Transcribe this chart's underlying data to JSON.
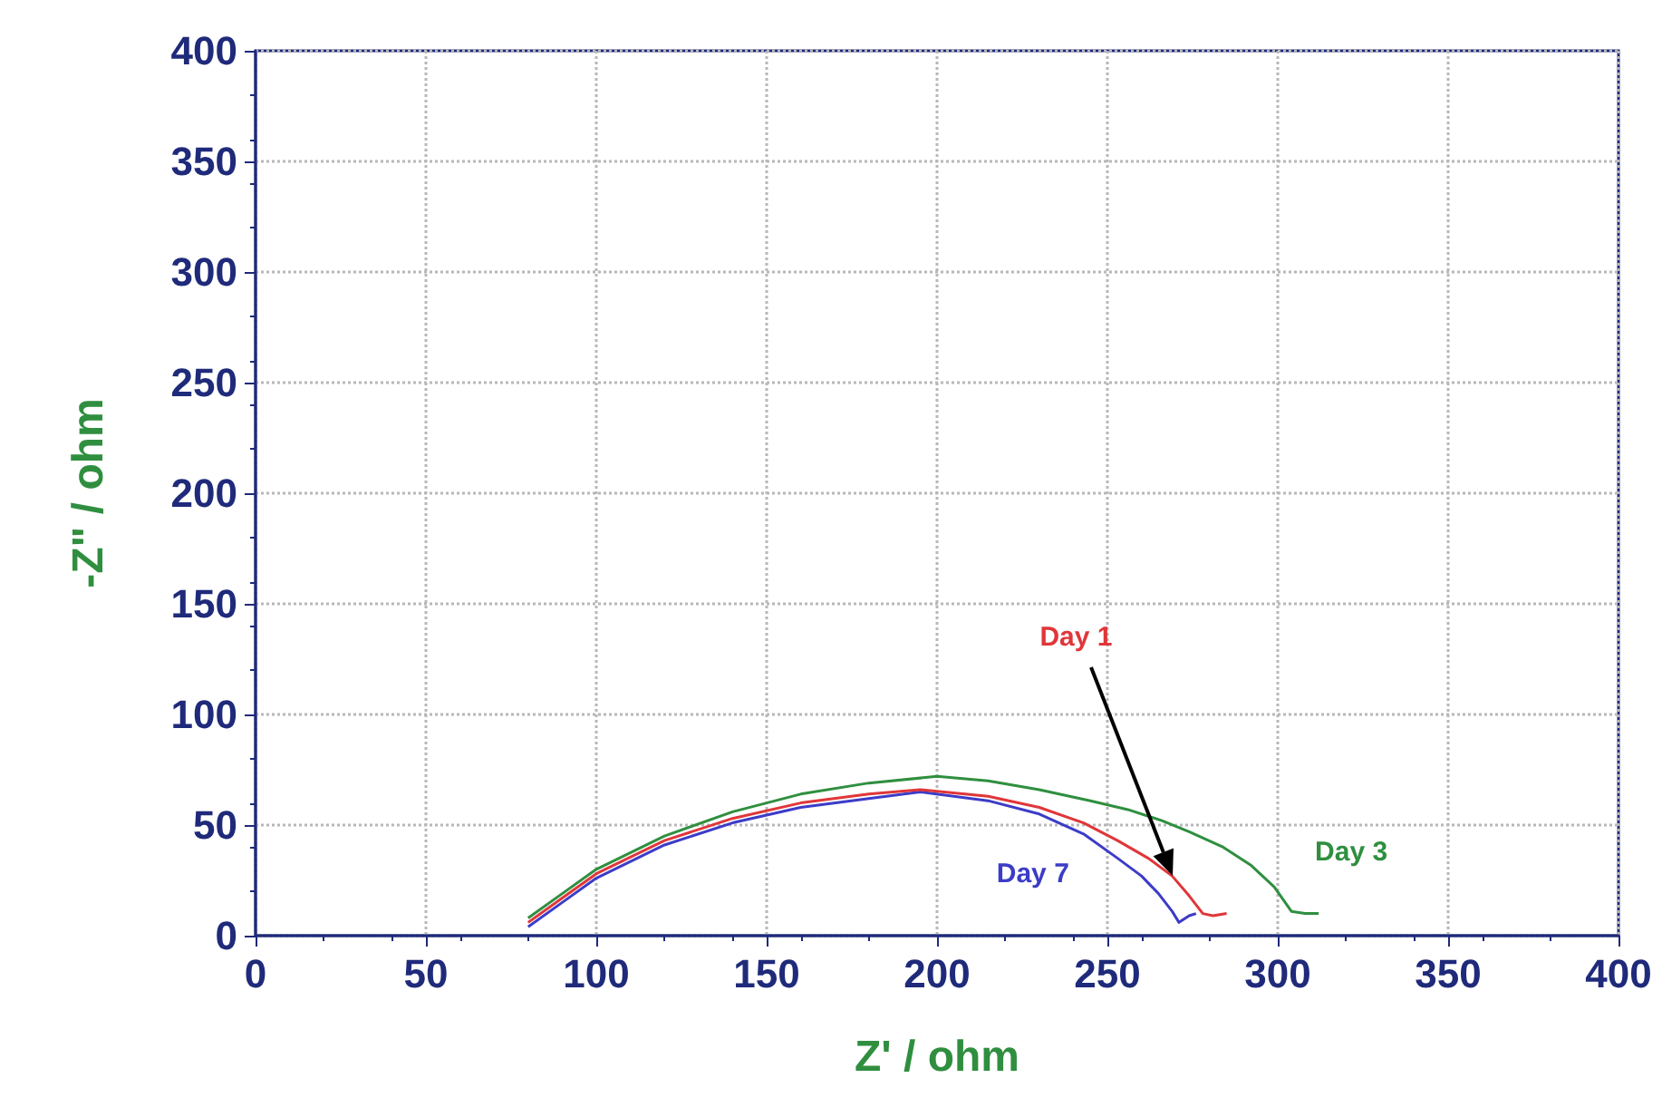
{
  "chart_data": {
    "type": "line",
    "xlabel": "Z' / ohm",
    "ylabel": "-Z\" / ohm",
    "xlim": [
      0,
      400
    ],
    "ylim": [
      0,
      400
    ],
    "xticks": [
      0,
      50,
      100,
      150,
      200,
      250,
      300,
      350,
      400
    ],
    "yticks": [
      0,
      50,
      100,
      150,
      200,
      250,
      300,
      350,
      400
    ],
    "grid": true,
    "legend": false,
    "marker": "none",
    "line_style": "solid",
    "series": [
      {
        "name": "Day 1",
        "color": "#e0363a",
        "x": [
          80,
          90,
          100,
          120,
          140,
          160,
          180,
          195,
          215,
          230,
          243,
          253,
          262,
          269,
          274,
          278,
          281,
          285
        ],
        "values": [
          6,
          17,
          28,
          43,
          53,
          60,
          64,
          66,
          63,
          58,
          51,
          43,
          35,
          27,
          18,
          10,
          9,
          10
        ]
      },
      {
        "name": "Day 3",
        "color": "#2f8f3f",
        "x": [
          80,
          90,
          100,
          120,
          140,
          160,
          180,
          200,
          215,
          230,
          245,
          256,
          266,
          274,
          284,
          292,
          299,
          304,
          308,
          312
        ],
        "values": [
          8,
          19,
          30,
          45,
          56,
          64,
          69,
          72,
          70,
          66,
          61,
          57,
          52,
          47,
          40,
          32,
          22,
          11,
          10,
          10
        ]
      },
      {
        "name": "Day 7",
        "color": "#3c3cc8",
        "x": [
          80,
          90,
          100,
          120,
          140,
          160,
          180,
          195,
          215,
          230,
          243,
          253,
          260,
          265,
          269,
          271,
          274,
          276
        ],
        "values": [
          4,
          15,
          26,
          41,
          51,
          58,
          62,
          65,
          61,
          55,
          46,
          35,
          27,
          19,
          11,
          6,
          9,
          10
        ]
      }
    ]
  }
}
